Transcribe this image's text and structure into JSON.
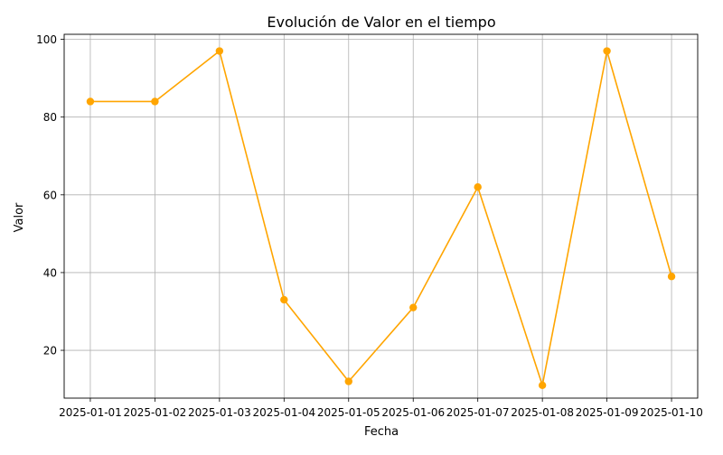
{
  "chart_data": {
    "type": "line",
    "title": "Evolución de Valor en el tiempo",
    "xlabel": "Fecha",
    "ylabel": "Valor",
    "x": [
      "2025-01-01",
      "2025-01-02",
      "2025-01-03",
      "2025-01-04",
      "2025-01-05",
      "2025-01-06",
      "2025-01-07",
      "2025-01-08",
      "2025-01-09",
      "2025-01-10"
    ],
    "series": [
      {
        "values": [
          84,
          84,
          97,
          33,
          12,
          31,
          62,
          11,
          97,
          39
        ],
        "color": "#ffa500",
        "marker": "circle"
      }
    ],
    "yticks": [
      20,
      40,
      60,
      80,
      100
    ],
    "ylim": [
      7.7,
      101.3
    ],
    "grid": true,
    "legend": "none"
  }
}
